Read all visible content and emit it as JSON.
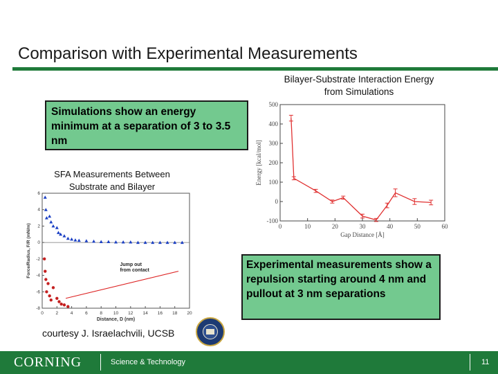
{
  "slide": {
    "title": "Comparison with Experimental Measurements",
    "courtesy": "courtesy J. Israelachvili, UCSB",
    "accent_color": "#1f7a3a",
    "callout_color": "#73c98f"
  },
  "callouts": {
    "simulation": "Simulations show an energy minimum at a separation of 3 to 3.5 nm",
    "experiment": "Experimental measurements show a repulsion starting around 4 nm and pullout at 3 nm separations"
  },
  "captions": {
    "simulation": "Bilayer-Substrate Interaction Energy from Simulations",
    "sfa": "SFA Measurements Between Substrate and Bilayer"
  },
  "footer": {
    "logo": "CORNING",
    "text": "Science & Technology",
    "page": "11"
  },
  "chart_data": [
    {
      "type": "line",
      "xlabel": "Gap Distance [Å]",
      "ylabel": "Energy [kcal/mol]",
      "xlim": [
        0,
        60
      ],
      "ylim": [
        -100,
        500
      ],
      "xticks": [
        0,
        10,
        20,
        30,
        40,
        50,
        60
      ],
      "yticks": [
        -100,
        0,
        100,
        200,
        300,
        400,
        500
      ],
      "color": "#e03030",
      "series": [
        {
          "x": [
            4,
            5,
            13,
            19,
            23,
            30,
            35,
            39,
            42,
            49,
            55
          ],
          "y": [
            430,
            120,
            55,
            0,
            20,
            -75,
            -95,
            -20,
            45,
            0,
            -5
          ],
          "err": [
            15,
            8,
            8,
            8,
            8,
            10,
            8,
            12,
            20,
            15,
            12
          ]
        }
      ]
    },
    {
      "type": "scatter",
      "xlabel": "Distance, D (nm)",
      "ylabel": "Force/Radius, F/R (mN/m)",
      "xlim": [
        0,
        20
      ],
      "ylim": [
        -8,
        6
      ],
      "xticks": [
        0,
        2,
        4,
        6,
        8,
        10,
        12,
        14,
        16,
        18,
        20
      ],
      "yticks": [
        -8,
        -6,
        -4,
        -2,
        0,
        2,
        4,
        6
      ],
      "annotation": "Jump out from contact",
      "series": [
        {
          "color": "#1a3fc4",
          "x": [
            0.4,
            0.5,
            0.6,
            1.0,
            1.2,
            1.5,
            2.0,
            2.2,
            2.5,
            3.0,
            3.5,
            4.0,
            4.5,
            5.0,
            6.0,
            7.0,
            8.0,
            9.0,
            10.0,
            11.0,
            12.0,
            13.0,
            14.0,
            15.0,
            16.0,
            17.0,
            18.0,
            19.0
          ],
          "y": [
            5.5,
            4.0,
            3.0,
            3.2,
            2.5,
            2.0,
            1.8,
            1.2,
            1.0,
            0.8,
            0.5,
            0.4,
            0.3,
            0.25,
            0.2,
            0.15,
            0.1,
            0.1,
            0.05,
            0.05,
            0.05,
            0.0,
            0.0,
            0.0,
            0.0,
            0.0,
            0.0,
            0.0
          ]
        },
        {
          "color": "#c42020",
          "x": [
            0.3,
            0.4,
            0.5,
            0.6,
            0.8,
            1.0,
            1.2,
            1.5,
            2.0,
            2.3,
            2.6,
            3.0,
            3.5
          ],
          "y": [
            -2.0,
            -3.5,
            -4.5,
            -6.0,
            -5.0,
            -6.5,
            -7.0,
            -5.5,
            -6.8,
            -7.2,
            -7.5,
            -7.6,
            -7.8
          ]
        }
      ]
    }
  ]
}
